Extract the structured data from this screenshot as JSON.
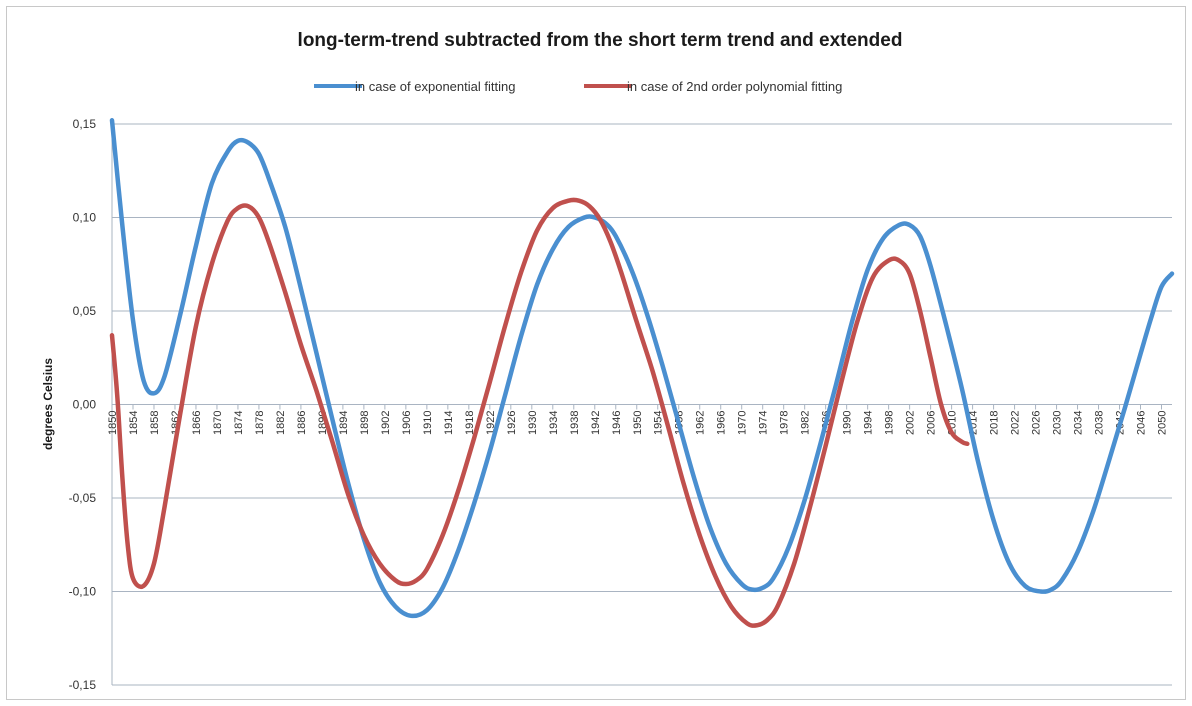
{
  "chart_data": {
    "type": "line",
    "title": "long-term-trend subtracted from the short term trend and extended",
    "xlabel": "",
    "ylabel": "degrees Celsius",
    "ylim": [
      -0.15,
      0.15
    ],
    "yticks": [
      0.15,
      0.1,
      0.05,
      0.0,
      -0.05,
      -0.1,
      -0.15
    ],
    "ytick_labels": [
      "0,15",
      "0,10",
      "0,05",
      "0,00",
      "-0,05",
      "-0,10",
      "-0,15"
    ],
    "xlim": [
      1850,
      2052
    ],
    "xtick_labels": [
      "1850",
      "1854",
      "1858",
      "1862",
      "1866",
      "1870",
      "1874",
      "1878",
      "1882",
      "1886",
      "1890",
      "1894",
      "1898",
      "1902",
      "1906",
      "1910",
      "1914",
      "1918",
      "1922",
      "1926",
      "1930",
      "1934",
      "1938",
      "1942",
      "1946",
      "1950",
      "1954",
      "1958",
      "1962",
      "1966",
      "1970",
      "1974",
      "1978",
      "1982",
      "1986",
      "1990",
      "1994",
      "1998",
      "2002",
      "2006",
      "2010",
      "2014",
      "2018",
      "2022",
      "2026",
      "2030",
      "2034",
      "2038",
      "2042",
      "2046",
      "2050"
    ],
    "grid": "horizontal",
    "legend_position": "top",
    "series": [
      {
        "name": "in case of exponential fitting",
        "color": "#4a8fd0",
        "x": [
          1850,
          1852,
          1854,
          1856,
          1858,
          1860,
          1863,
          1866,
          1869,
          1872,
          1874,
          1876,
          1878,
          1880,
          1883,
          1886,
          1889,
          1892,
          1895,
          1898,
          1901,
          1904,
          1907,
          1910,
          1913,
          1916,
          1919,
          1922,
          1925,
          1928,
          1931,
          1934,
          1937,
          1940,
          1942,
          1944,
          1946,
          1949,
          1952,
          1955,
          1958,
          1961,
          1964,
          1967,
          1970,
          1972,
          1974,
          1976,
          1979,
          1982,
          1985,
          1988,
          1991,
          1994,
          1997,
          2000,
          2002,
          2004,
          2006,
          2009,
          2012,
          2015,
          2018,
          2021,
          2024,
          2027,
          2029,
          2031,
          2034,
          2037,
          2040,
          2043,
          2046,
          2048,
          2050,
          2052
        ],
        "y": [
          0.152,
          0.095,
          0.045,
          0.013,
          0.006,
          0.015,
          0.048,
          0.085,
          0.118,
          0.135,
          0.141,
          0.14,
          0.134,
          0.12,
          0.095,
          0.062,
          0.027,
          -0.008,
          -0.042,
          -0.072,
          -0.095,
          -0.108,
          -0.113,
          -0.11,
          -0.098,
          -0.078,
          -0.053,
          -0.025,
          0.006,
          0.037,
          0.064,
          0.083,
          0.095,
          0.1,
          0.1,
          0.097,
          0.09,
          0.072,
          0.048,
          0.02,
          -0.01,
          -0.04,
          -0.066,
          -0.085,
          -0.096,
          -0.099,
          -0.098,
          -0.093,
          -0.076,
          -0.051,
          -0.021,
          0.011,
          0.044,
          0.072,
          0.089,
          0.096,
          0.096,
          0.09,
          0.074,
          0.042,
          0.008,
          -0.03,
          -0.062,
          -0.085,
          -0.097,
          -0.1,
          -0.099,
          -0.094,
          -0.079,
          -0.057,
          -0.03,
          -0.002,
          0.027,
          0.046,
          0.063,
          0.07
        ]
      },
      {
        "name": "in case of 2nd order polynomial fitting",
        "color": "#c0504d",
        "x": [
          1850,
          1851,
          1852,
          1853,
          1854,
          1856,
          1858,
          1860,
          1863,
          1866,
          1869,
          1872,
          1874,
          1876,
          1878,
          1880,
          1883,
          1886,
          1889,
          1892,
          1895,
          1898,
          1901,
          1904,
          1906,
          1908,
          1910,
          1913,
          1916,
          1919,
          1922,
          1925,
          1928,
          1931,
          1934,
          1937,
          1939,
          1941,
          1943,
          1945,
          1947,
          1950,
          1953,
          1956,
          1959,
          1962,
          1965,
          1968,
          1971,
          1973,
          1975,
          1977,
          1980,
          1983,
          1986,
          1989,
          1992,
          1995,
          1998,
          2000,
          2002,
          2004,
          2006,
          2008,
          2010,
          2012,
          2013
        ],
        "y": [
          0.037,
          0.005,
          -0.04,
          -0.075,
          -0.093,
          -0.097,
          -0.085,
          -0.055,
          -0.005,
          0.042,
          0.075,
          0.098,
          0.105,
          0.106,
          0.1,
          0.086,
          0.06,
          0.032,
          0.007,
          -0.02,
          -0.048,
          -0.07,
          -0.085,
          -0.094,
          -0.096,
          -0.094,
          -0.088,
          -0.07,
          -0.046,
          -0.018,
          0.012,
          0.043,
          0.071,
          0.093,
          0.105,
          0.109,
          0.109,
          0.106,
          0.099,
          0.087,
          0.071,
          0.044,
          0.018,
          -0.012,
          -0.043,
          -0.07,
          -0.092,
          -0.108,
          -0.117,
          -0.118,
          -0.115,
          -0.107,
          -0.085,
          -0.055,
          -0.022,
          0.012,
          0.044,
          0.068,
          0.077,
          0.077,
          0.07,
          0.05,
          0.025,
          0.0,
          -0.015,
          -0.02,
          -0.021
        ]
      }
    ]
  }
}
